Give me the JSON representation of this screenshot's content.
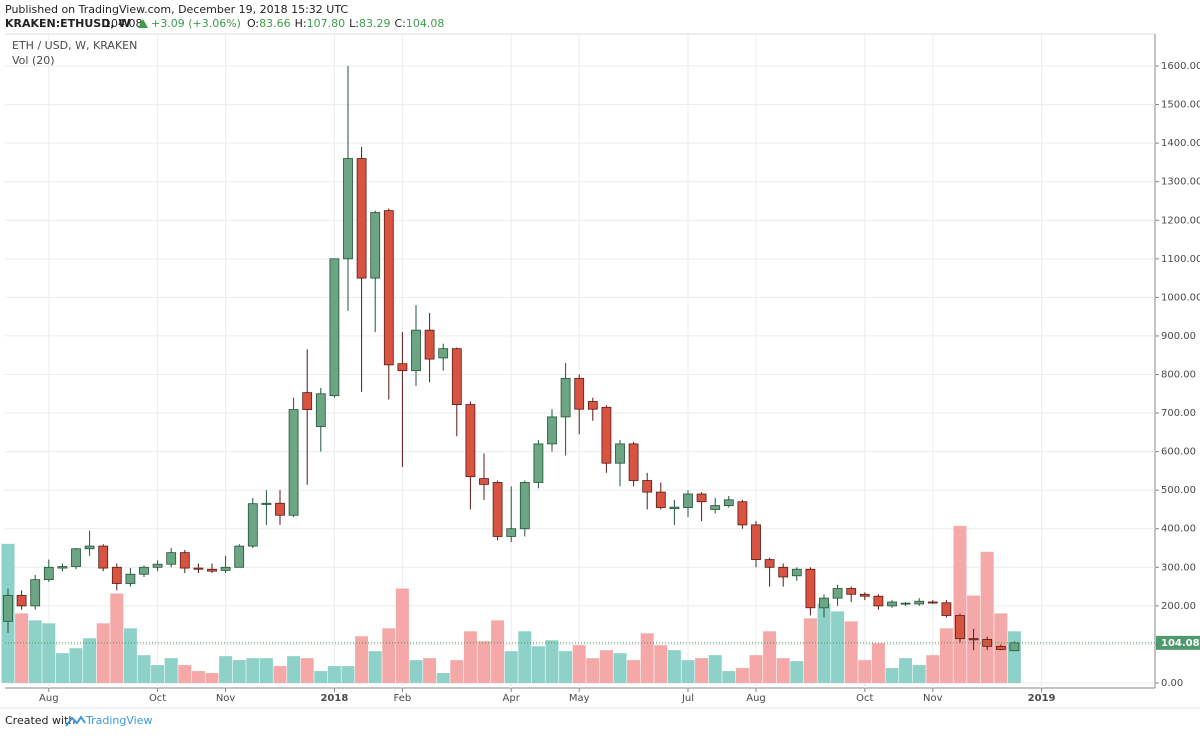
{
  "header": {
    "published": "Published on TradingView.com, December 19, 2018 15:32 UTC",
    "symbol": "KRAKEN:ETHUSD, W",
    "price": "104.08",
    "change": "+3.09 (+3.06%)",
    "fields": [
      {
        "key": "O:",
        "value": "83.66"
      },
      {
        "key": "H:",
        "value": "107.80"
      },
      {
        "key": "L:",
        "value": "83.29"
      },
      {
        "key": "C:",
        "value": "104.08"
      }
    ]
  },
  "footer": {
    "created": "Created with",
    "brand": "TradingView"
  },
  "chart_data": {
    "type": "candlestick",
    "title": "ETH / USD, W, KRAKEN",
    "volume_label": "Vol (20)",
    "up_color": "#6ba583",
    "down_color": "#d75442",
    "volume_up_color": "#8ed1c8",
    "volume_down_color": "#f5a8a8",
    "grid": true,
    "ylim": [
      -13,
      1683
    ],
    "yticks": [
      {
        "value": 0,
        "label": "0.00"
      },
      {
        "value": 100,
        "label": "100.00"
      },
      {
        "value": 200,
        "label": "200.00"
      },
      {
        "value": 300,
        "label": "300.00"
      },
      {
        "value": 400,
        "label": "400.00"
      },
      {
        "value": 500,
        "label": "500.00"
      },
      {
        "value": 600,
        "label": "600.00"
      },
      {
        "value": 700,
        "label": "700.00"
      },
      {
        "value": 800,
        "label": "800.00"
      },
      {
        "value": 900,
        "label": "900.00"
      },
      {
        "value": 1000,
        "label": "1000.00"
      },
      {
        "value": 1100,
        "label": "1100.00"
      },
      {
        "value": 1200,
        "label": "1200.00"
      },
      {
        "value": 1300,
        "label": "1300.00"
      },
      {
        "value": 1400,
        "label": "1400.00"
      },
      {
        "value": 1500,
        "label": "1500.00"
      },
      {
        "value": 1600,
        "label": "1600.00"
      }
    ],
    "last_price": {
      "value": 104.08,
      "label": "104.08"
    },
    "categories": [
      null,
      null,
      null,
      "Aug",
      null,
      null,
      null,
      null,
      null,
      null,
      null,
      "Oct",
      null,
      null,
      null,
      null,
      "Nov",
      null,
      null,
      null,
      null,
      null,
      null,
      null,
      "2018",
      null,
      null,
      null,
      null,
      "Feb",
      null,
      null,
      null,
      null,
      null,
      null,
      null,
      "Apr",
      null,
      null,
      null,
      null,
      "May",
      null,
      null,
      null,
      null,
      null,
      null,
      null,
      "Jul",
      null,
      null,
      null,
      null,
      "Aug",
      null,
      null,
      null,
      null,
      null,
      null,
      null,
      "Oct",
      null,
      null,
      null,
      null,
      "Nov",
      null,
      null,
      null,
      null,
      null,
      null,
      null,
      "2019"
    ],
    "open": [
      160,
      227,
      200,
      268,
      298,
      302,
      348,
      355,
      300,
      258,
      282,
      300,
      308,
      338,
      298,
      295,
      292,
      300,
      355,
      463,
      466,
      435,
      753,
      665,
      745,
      1100,
      1360,
      1050,
      1225,
      828,
      810,
      915,
      843,
      867,
      722,
      530,
      520,
      380,
      400,
      520,
      620,
      690,
      790,
      730,
      715,
      570,
      620,
      525,
      495,
      452,
      455,
      490,
      450,
      460,
      470,
      410,
      320,
      300,
      278,
      295,
      195,
      220,
      245,
      230,
      225,
      200,
      205,
      205,
      210,
      208,
      175,
      115,
      113,
      95,
      83.66,
      null,
      null
    ],
    "high": [
      245,
      240,
      280,
      320,
      310,
      350,
      395,
      360,
      310,
      298,
      305,
      318,
      350,
      345,
      310,
      310,
      330,
      360,
      480,
      500,
      500,
      740,
      865,
      765,
      1100,
      1600,
      1390,
      1225,
      1230,
      910,
      980,
      960,
      880,
      870,
      730,
      595,
      525,
      510,
      525,
      630,
      710,
      830,
      800,
      740,
      720,
      630,
      625,
      545,
      520,
      475,
      500,
      495,
      480,
      485,
      475,
      420,
      325,
      310,
      300,
      300,
      230,
      255,
      250,
      235,
      230,
      215,
      210,
      220,
      215,
      215,
      180,
      140,
      120,
      100,
      107.8,
      null,
      null
    ],
    "low": [
      130,
      190,
      190,
      262,
      290,
      295,
      330,
      290,
      240,
      250,
      275,
      290,
      300,
      285,
      285,
      285,
      285,
      300,
      350,
      410,
      410,
      430,
      514,
      600,
      740,
      965,
      755,
      910,
      735,
      560,
      770,
      780,
      810,
      640,
      450,
      475,
      370,
      365,
      380,
      505,
      600,
      590,
      645,
      680,
      545,
      510,
      510,
      450,
      450,
      410,
      430,
      420,
      440,
      455,
      400,
      300,
      250,
      250,
      265,
      175,
      170,
      200,
      210,
      215,
      190,
      195,
      200,
      200,
      205,
      170,
      105,
      85,
      85,
      85,
      83.29,
      null,
      null
    ],
    "close": [
      227,
      200,
      268,
      300,
      302,
      348,
      355,
      298,
      258,
      282,
      300,
      308,
      338,
      298,
      295,
      290,
      300,
      355,
      465,
      466,
      435,
      709,
      709,
      750,
      1100,
      1360,
      1050,
      1220,
      825,
      810,
      915,
      840,
      867,
      722,
      535,
      515,
      380,
      400,
      520,
      620,
      690,
      790,
      710,
      710,
      570,
      620,
      525,
      495,
      455,
      456,
      490,
      470,
      460,
      475,
      410,
      320,
      300,
      275,
      295,
      195,
      220,
      245,
      230,
      225,
      200,
      210,
      207,
      212,
      208,
      175,
      115,
      112,
      95,
      87,
      104.08,
      null,
      null
    ],
    "volume": [
      140,
      70,
      63,
      60,
      30,
      35,
      45,
      60,
      90,
      55,
      28,
      18,
      25,
      18,
      12,
      10,
      27,
      23,
      25,
      25,
      17,
      27,
      25,
      12,
      17,
      17,
      47,
      32,
      55,
      95,
      23,
      25,
      10,
      23,
      52,
      42,
      63,
      32,
      52,
      37,
      43,
      32,
      38,
      25,
      33,
      30,
      23,
      50,
      38,
      33,
      23,
      25,
      28,
      12,
      15,
      28,
      52,
      25,
      22,
      65,
      80,
      72,
      62,
      23,
      40,
      15,
      25,
      18,
      28,
      55,
      158,
      88,
      132,
      70,
      52,
      null,
      null
    ]
  }
}
